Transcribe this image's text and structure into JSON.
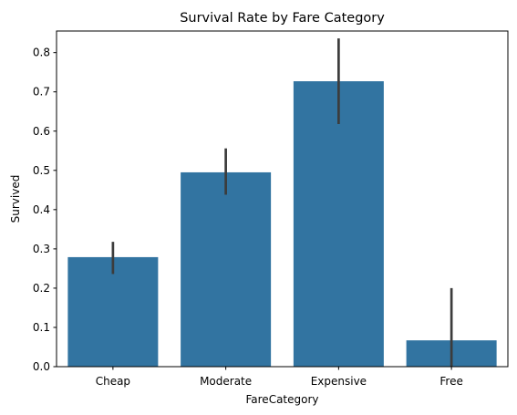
{
  "chart_data": {
    "type": "bar",
    "title": "Survival Rate by Fare Category",
    "xlabel": "FareCategory",
    "ylabel": "Survived",
    "categories": [
      "Cheap",
      "Moderate",
      "Expensive",
      "Free"
    ],
    "values": [
      0.279,
      0.495,
      0.727,
      0.067
    ],
    "error_low": [
      0.236,
      0.438,
      0.618,
      0.0
    ],
    "error_high": [
      0.318,
      0.556,
      0.836,
      0.2
    ],
    "ylim": [
      0,
      0.855
    ],
    "yticks": [
      0.0,
      0.1,
      0.2,
      0.3,
      0.4,
      0.5,
      0.6,
      0.7,
      0.8
    ],
    "ytick_labels": [
      "0.0",
      "0.1",
      "0.2",
      "0.3",
      "0.4",
      "0.5",
      "0.6",
      "0.7",
      "0.8"
    ],
    "grid": false,
    "legend": "none",
    "bar_color": "#3274a1",
    "error_color": "#3c3c3c"
  }
}
